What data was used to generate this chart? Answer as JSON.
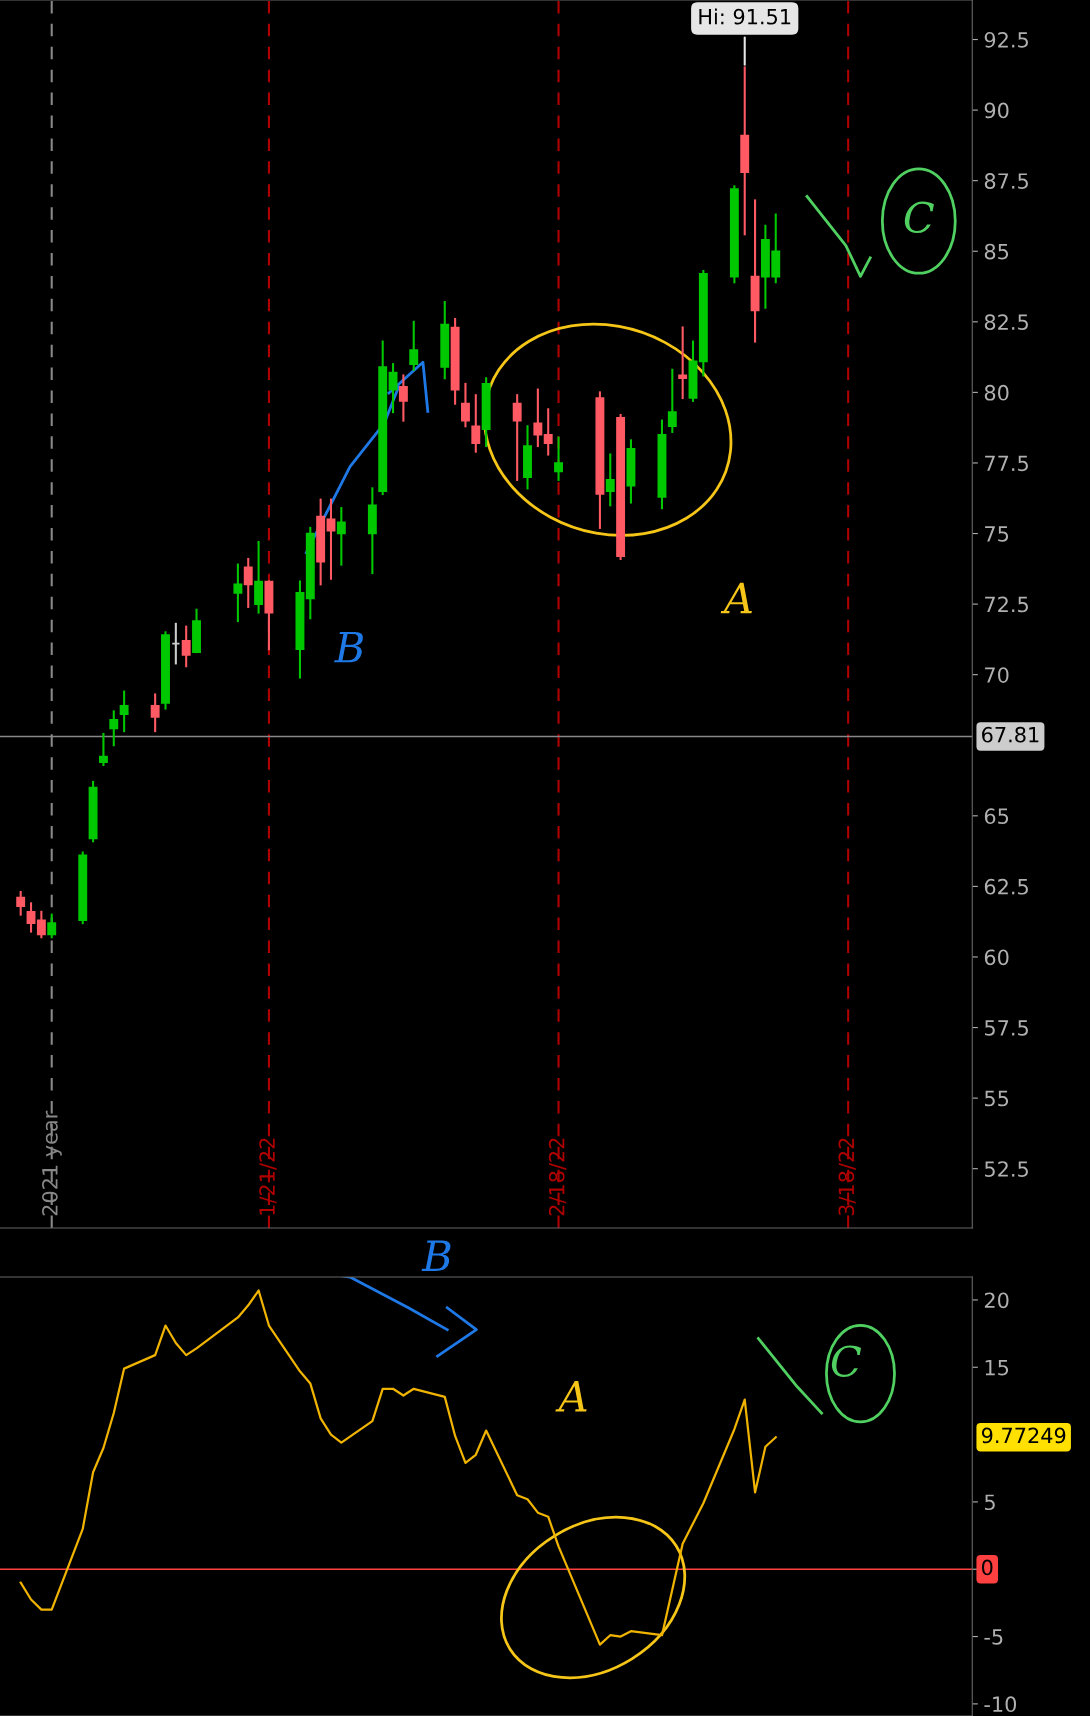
{
  "chart_data": [
    {
      "type": "candlestick",
      "x": [
        "2021-12-28",
        "2021-12-29",
        "2021-12-30",
        "2021-12-31",
        "2022-01-03",
        "2022-01-04",
        "2022-01-05",
        "2022-01-06",
        "2022-01-07",
        "2022-01-10",
        "2022-01-11",
        "2022-01-12",
        "2022-01-13",
        "2022-01-14",
        "2022-01-18",
        "2022-01-19",
        "2022-01-20",
        "2022-01-21",
        "2022-01-24",
        "2022-01-25",
        "2022-01-26",
        "2022-01-27",
        "2022-01-28",
        "2022-01-31",
        "2022-02-01",
        "2022-02-02",
        "2022-02-03",
        "2022-02-04",
        "2022-02-07",
        "2022-02-08",
        "2022-02-09",
        "2022-02-10",
        "2022-02-11",
        "2022-02-14",
        "2022-02-15",
        "2022-02-16",
        "2022-02-17",
        "2022-02-18",
        "2022-02-22",
        "2022-02-23",
        "2022-02-24",
        "2022-02-25",
        "2022-02-28",
        "2022-03-01",
        "2022-03-02",
        "2022-03-03",
        "2022-03-04",
        "2022-03-07",
        "2022-03-08",
        "2022-03-09",
        "2022-03-10",
        "2022-03-11"
      ],
      "ohlc": [
        [
          62.1,
          62.3,
          61.5,
          61.8
        ],
        [
          61.6,
          61.9,
          60.9,
          61.2
        ],
        [
          61.3,
          61.6,
          60.7,
          60.8
        ],
        [
          60.8,
          61.5,
          60.7,
          61.2
        ],
        [
          61.3,
          63.7,
          61.2,
          63.6
        ],
        [
          64.2,
          66.2,
          64.1,
          66.0
        ],
        [
          66.9,
          67.9,
          66.8,
          67.1
        ],
        [
          68.1,
          68.7,
          67.5,
          68.4
        ],
        [
          68.6,
          69.4,
          68.0,
          68.9
        ],
        [
          68.9,
          69.3,
          68.0,
          68.5
        ],
        [
          69.0,
          71.5,
          68.8,
          71.4
        ],
        [
          71.1,
          71.8,
          70.4,
          71.1
        ],
        [
          71.2,
          71.7,
          70.3,
          70.7
        ],
        [
          70.8,
          72.3,
          70.8,
          71.9
        ],
        [
          72.9,
          73.9,
          71.9,
          73.2
        ],
        [
          73.8,
          74.1,
          72.4,
          73.2
        ],
        [
          72.5,
          74.7,
          72.2,
          73.3
        ],
        [
          73.3,
          73.3,
          70.9,
          72.2
        ],
        [
          70.9,
          73.3,
          69.9,
          72.9
        ],
        [
          72.7,
          75.2,
          72.0,
          75.0
        ],
        [
          75.6,
          76.2,
          73.2,
          74.0
        ],
        [
          75.5,
          76.2,
          73.4,
          75.1
        ],
        [
          75.0,
          75.9,
          73.9,
          75.4
        ],
        [
          75.0,
          76.6,
          73.6,
          76.0
        ],
        [
          76.5,
          81.8,
          76.4,
          80.9
        ],
        [
          80.1,
          81.0,
          79.3,
          80.7
        ],
        [
          80.2,
          80.6,
          79.0,
          79.7
        ],
        [
          81.0,
          82.5,
          80.8,
          81.5
        ],
        [
          80.9,
          83.2,
          80.5,
          82.4
        ],
        [
          82.3,
          82.6,
          79.6,
          80.1
        ],
        [
          79.6,
          80.3,
          78.8,
          79.0
        ],
        [
          78.8,
          79.9,
          77.9,
          78.2
        ],
        [
          78.7,
          80.5,
          78.1,
          80.3
        ],
        [
          79.6,
          79.9,
          76.9,
          79.0
        ],
        [
          77.0,
          78.8,
          76.6,
          78.1
        ],
        [
          78.9,
          80.1,
          78.1,
          78.5
        ],
        [
          78.5,
          79.4,
          77.8,
          78.2
        ],
        [
          77.2,
          78.4,
          76.9,
          77.5
        ],
        [
          79.8,
          80.0,
          75.2,
          76.4
        ],
        [
          76.5,
          77.8,
          76.0,
          76.9
        ],
        [
          79.1,
          79.2,
          74.1,
          74.2
        ],
        [
          76.7,
          78.3,
          76.1,
          78.0
        ],
        [
          76.3,
          79.0,
          75.9,
          78.5
        ],
        [
          78.8,
          80.8,
          78.6,
          79.3
        ],
        [
          80.6,
          82.3,
          79.8,
          80.5
        ],
        [
          79.8,
          81.8,
          79.7,
          81.1
        ],
        [
          81.1,
          84.3,
          80.6,
          84.2
        ],
        [
          84.1,
          87.3,
          83.9,
          87.2
        ],
        [
          89.1,
          91.51,
          85.6,
          87.8
        ],
        [
          84.1,
          86.8,
          81.8,
          82.9
        ],
        [
          84.1,
          85.9,
          83.0,
          85.4
        ],
        [
          84.1,
          86.3,
          83.9,
          85.0
        ]
      ],
      "colors": [
        "#ff5a64",
        "#ff5a64",
        "#ff5a64",
        "#00c800",
        "#00c800",
        "#00c800",
        "#00c800",
        "#00c800",
        "#00c800",
        "#ff5a64",
        "#00c800",
        "#cccccc",
        "#ff5a64",
        "#00c800",
        "#00c800",
        "#ff5a64",
        "#00c800",
        "#ff5a64",
        "#00c800",
        "#00c800",
        "#ff5a64",
        "#ff5a64",
        "#00c800",
        "#00c800",
        "#00c800",
        "#00c800",
        "#ff5a64",
        "#00c800",
        "#00c800",
        "#ff5a64",
        "#ff5a64",
        "#ff5a64",
        "#00c800",
        "#ff5a64",
        "#00c800",
        "#ff5a64",
        "#ff5a64",
        "#00c800",
        "#ff5a64",
        "#00c800",
        "#ff5a64",
        "#00c800",
        "#00c800",
        "#00c800",
        "#ff5a64",
        "#00c800",
        "#00c800",
        "#00c800",
        "#ff5a64",
        "#ff5a64",
        "#00c800",
        "#00c800"
      ],
      "xlim": [
        "2021-12-26",
        "2022-03-30"
      ],
      "xticks": [
        {
          "value": "2021-12-31",
          "label": "2021 year"
        },
        {
          "value": "2022-01-21",
          "label": "1/21/22"
        },
        {
          "value": "2022-02-18",
          "label": "2/18/22"
        },
        {
          "value": "2022-03-18",
          "label": "3/18/22"
        }
      ],
      "ylim": [
        50.4,
        93.9
      ],
      "yticks": [
        52.5,
        55,
        57.5,
        60,
        62.5,
        65,
        70,
        72.5,
        75,
        77.5,
        80,
        82.5,
        85,
        87.5,
        90,
        92.5
      ],
      "ref_lines": [
        {
          "axis": "x",
          "value": "2021-12-31",
          "color": "#888888",
          "line_style": "dashed"
        },
        {
          "axis": "x",
          "value": "2022-01-21",
          "color": "#b00000",
          "line_style": "dashed"
        },
        {
          "axis": "x",
          "value": "2022-02-18",
          "color": "#b00000",
          "line_style": "dashed"
        },
        {
          "axis": "x",
          "value": "2022-03-18",
          "color": "#b00000",
          "line_style": "dashed"
        },
        {
          "axis": "y",
          "value": 67.81,
          "label": "67.81",
          "color": "#888888",
          "line_style": "solid"
        }
      ],
      "annotations": [
        {
          "text": "Hi: 91.51",
          "x": "2022-03-08",
          "y": 91.51
        },
        "B",
        "A",
        "C"
      ]
    },
    {
      "type": "line",
      "x": [
        "2021-12-28",
        "2021-12-29",
        "2021-12-30",
        "2021-12-31",
        "2022-01-03",
        "2022-01-04",
        "2022-01-05",
        "2022-01-06",
        "2022-01-07",
        "2022-01-10",
        "2022-01-11",
        "2022-01-12",
        "2022-01-13",
        "2022-01-14",
        "2022-01-18",
        "2022-01-19",
        "2022-01-20",
        "2022-01-21",
        "2022-01-24",
        "2022-01-25",
        "2022-01-26",
        "2022-01-27",
        "2022-01-28",
        "2022-01-31",
        "2022-02-01",
        "2022-02-02",
        "2022-02-03",
        "2022-02-04",
        "2022-02-07",
        "2022-02-08",
        "2022-02-09",
        "2022-02-10",
        "2022-02-11",
        "2022-02-14",
        "2022-02-15",
        "2022-02-16",
        "2022-02-17",
        "2022-02-18",
        "2022-02-22",
        "2022-02-23",
        "2022-02-24",
        "2022-02-25",
        "2022-02-28",
        "2022-03-01",
        "2022-03-02",
        "2022-03-03",
        "2022-03-04",
        "2022-03-07",
        "2022-03-08",
        "2022-03-09",
        "2022-03-10",
        "2022-03-11"
      ],
      "series": [
        {
          "color": "#f0b400",
          "values": [
            -1.0,
            -2.25,
            -3.0,
            -3.0,
            3.0,
            7.2,
            9.0,
            11.6,
            14.9,
            15.9,
            18.1,
            16.8,
            15.9,
            16.4,
            18.7,
            19.6,
            20.7,
            18.1,
            14.7,
            13.8,
            11.2,
            10.0,
            9.4,
            11.0,
            13.4,
            13.4,
            12.9,
            13.4,
            12.8,
            9.9,
            7.9,
            8.5,
            10.3,
            5.5,
            5.2,
            4.2,
            3.9,
            1.7,
            -5.6,
            -4.9,
            -5.0,
            -4.6,
            -4.9,
            -1.5,
            1.9,
            3.4,
            4.9,
            10.4,
            12.6,
            5.7,
            9.1,
            9.8
          ]
        }
      ],
      "xlim": [
        "2021-12-26",
        "2022-03-30"
      ],
      "ylim": [
        -10.9,
        21.7
      ],
      "yticks": [
        -10,
        -5,
        {
          "value": 0,
          "label": null
        },
        5,
        15,
        20
      ],
      "tick_labels": "y",
      "ref_lines": [
        {
          "axis": "y",
          "value": 0,
          "label": "0",
          "color": "#ff4040",
          "line_style": "solid"
        }
      ],
      "annotations": [
        "9.77249",
        "B",
        "A",
        "C"
      ]
    }
  ]
}
